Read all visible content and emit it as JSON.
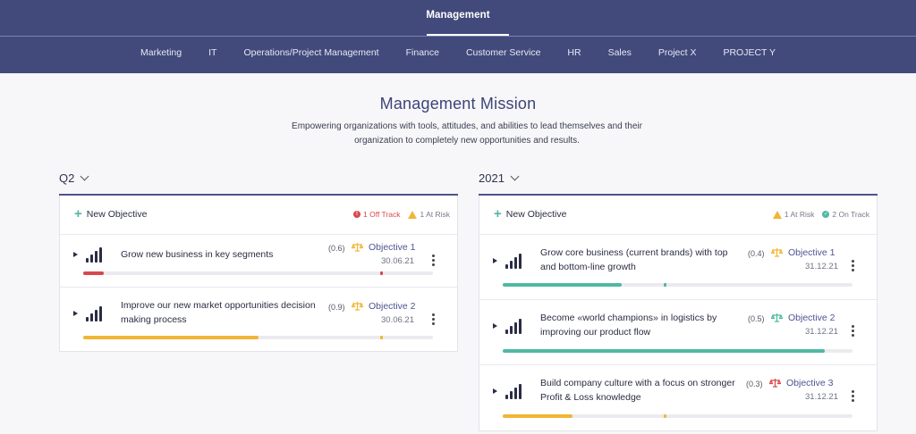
{
  "top_nav": {
    "active_tab": "Management"
  },
  "sub_nav": {
    "items": [
      "Marketing",
      "IT",
      "Operations/Project Management",
      "Finance",
      "Customer Service",
      "HR",
      "Sales",
      "Project X",
      "PROJECT Y"
    ]
  },
  "mission": {
    "title": "Management Mission",
    "text": "Empowering organizations with tools, attitudes, and abilities to lead themselves and their organization to completely new opportunities and results."
  },
  "colors": {
    "accent": "#424a7c",
    "red": "#d8474e",
    "yellow": "#f2b534",
    "teal": "#4fb8a4"
  },
  "left": {
    "period": "Q2",
    "new_objective": "New Objective",
    "status": {
      "off_track": "1 Off Track",
      "at_risk": "1 At Risk"
    },
    "objectives": [
      {
        "title": "Grow new business in key segments",
        "score": "(0.6)",
        "label": "Objective 1",
        "date": "30.06.21",
        "progress": 0.06,
        "marker": 0.85,
        "color": "#d8474e",
        "icon_color": "#f2b534"
      },
      {
        "title": "Improve our new market opportunities decision making process",
        "score": "(0.9)",
        "label": "Objective 2",
        "date": "30.06.21",
        "progress": 0.5,
        "marker": 0.85,
        "color": "#f2b534",
        "icon_color": "#f2b534"
      }
    ]
  },
  "right": {
    "period": "2021",
    "new_objective": "New Objective",
    "status": {
      "at_risk": "1 At Risk",
      "on_track": "2 On Track"
    },
    "objectives": [
      {
        "title": "Grow core business (current brands) with top and bottom-line growth",
        "score": "(0.4)",
        "label": "Objective 1",
        "date": "31.12.21",
        "progress": 0.34,
        "marker": 0.46,
        "color": "#4fb8a4",
        "icon_color": "#f2b534"
      },
      {
        "title": "Become «world champions» in logistics by improving our product flow",
        "score": "(0.5)",
        "label": "Objective 2",
        "date": "31.12.21",
        "progress": 0.92,
        "marker": 0.92,
        "color": "#4fb8a4",
        "icon_color": "#4fb8a4"
      },
      {
        "title": "Build company culture with a focus on stronger Profit & Loss knowledge",
        "score": "(0.3)",
        "label": "Objective 3",
        "date": "31.12.21",
        "progress": 0.2,
        "marker": 0.46,
        "color": "#f2b534",
        "icon_color": "#d8474e"
      }
    ]
  }
}
